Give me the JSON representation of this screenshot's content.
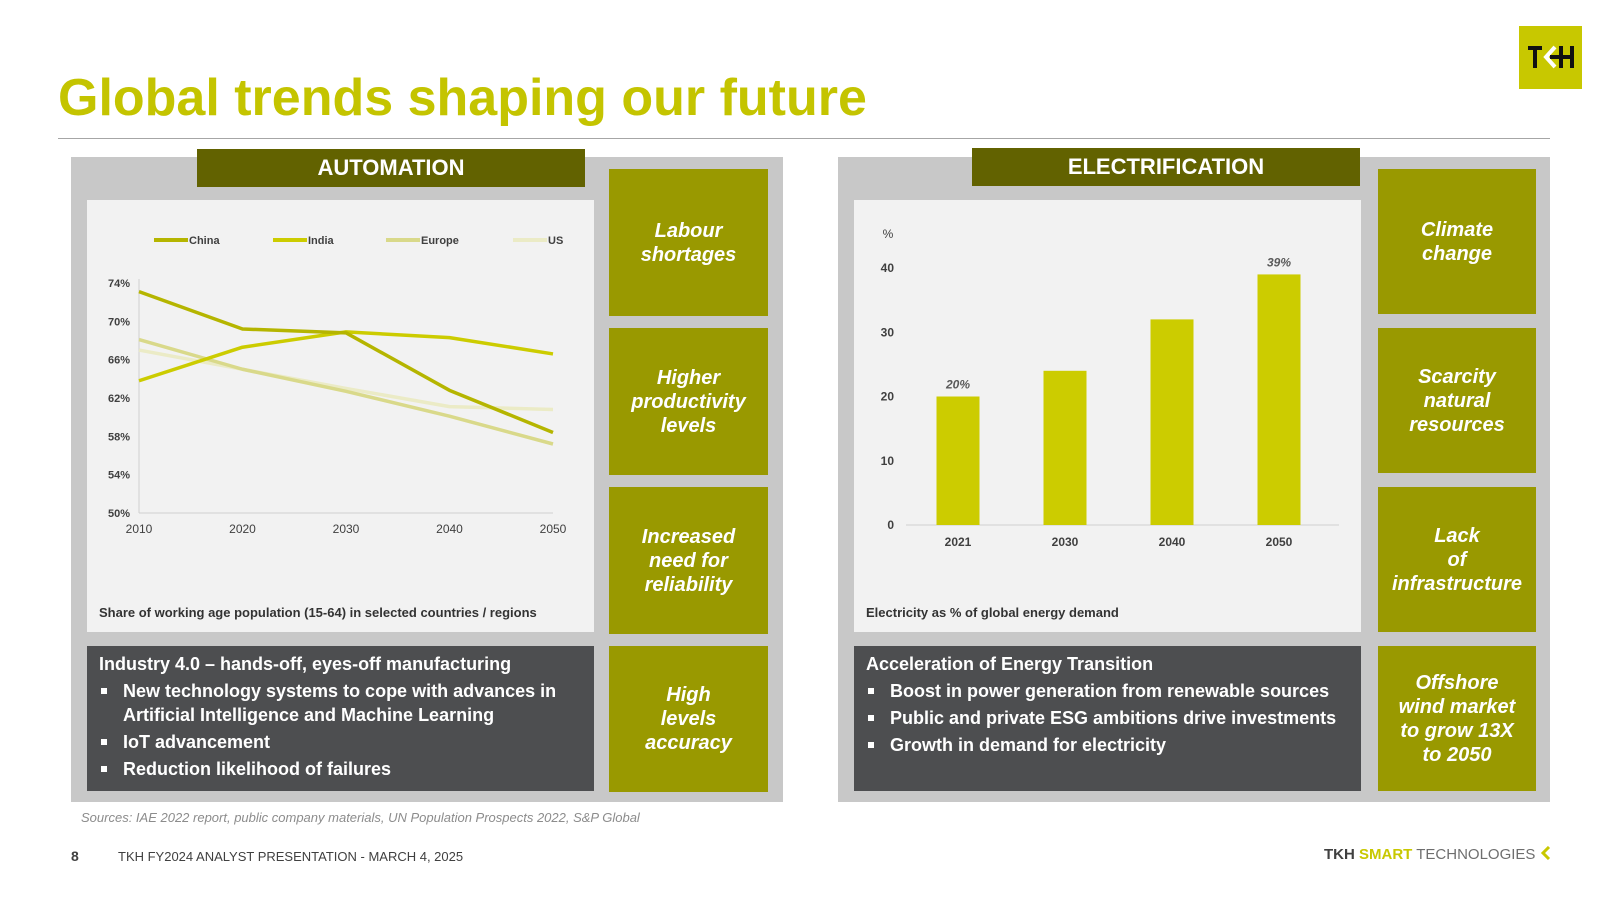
{
  "title": "Global trends shaping our future",
  "logo": {
    "text": "TKH",
    "color": "#c8c800"
  },
  "automation": {
    "header": "AUTOMATION",
    "tiles": [
      [
        "Labour",
        "shortages"
      ],
      [
        "Higher",
        "productivity",
        "levels"
      ],
      [
        "Increased",
        "need for",
        "reliability"
      ],
      [
        "High",
        "levels",
        "accuracy"
      ]
    ],
    "caption": "Share of working age population (15-64) in selected countries / regions",
    "box": {
      "heading": "Industry 4.0 – hands-off, eyes-off manufacturing",
      "bullets": [
        "New technology systems to cope with advances in Artificial Intelligence and Machine Learning",
        "IoT advancement",
        "Reduction likelihood of failures"
      ]
    }
  },
  "electrification": {
    "header": "ELECTRIFICATION",
    "tiles": [
      [
        "Climate",
        "change"
      ],
      [
        "Scarcity",
        "natural",
        "resources"
      ],
      [
        "Lack",
        "of",
        "infrastructure"
      ],
      [
        "Offshore",
        "wind market",
        "to grow 13X",
        "to 2050"
      ]
    ],
    "caption": "Electricity as % of global energy demand",
    "box": {
      "heading": "Acceleration of Energy Transition",
      "bullets": [
        "Boost in power generation from renewable sources",
        "Public and private ESG ambitions drive investments",
        "Growth in demand for electricity"
      ]
    }
  },
  "chart_data": [
    {
      "type": "line",
      "x": [
        2010,
        2020,
        2030,
        2040,
        2050
      ],
      "xticks": [
        "2010",
        "2020",
        "2030",
        "2040",
        "2050"
      ],
      "yticks": [
        "50%",
        "54%",
        "58%",
        "62%",
        "66%",
        "70%",
        "74%"
      ],
      "ylim": [
        50,
        74
      ],
      "legend_position": "top",
      "series": [
        {
          "name": "China",
          "color": "#b5b500",
          "values": [
            73.1,
            69.2,
            68.8,
            62.8,
            58.4
          ]
        },
        {
          "name": "India",
          "color": "#cccc00",
          "values": [
            63.8,
            67.3,
            68.9,
            68.3,
            66.6
          ]
        },
        {
          "name": "Europe",
          "color": "#d9d98a",
          "values": [
            68.1,
            65.0,
            62.7,
            60.1,
            57.2
          ]
        },
        {
          "name": "US",
          "color": "#ebebc6",
          "values": [
            67.0,
            65.0,
            63.0,
            61.1,
            60.8
          ]
        }
      ]
    },
    {
      "type": "bar",
      "ylabel": "%",
      "categories": [
        "2021",
        "2030",
        "2040",
        "2050"
      ],
      "values": [
        20,
        24,
        32,
        39
      ],
      "data_labels": [
        "20%",
        "",
        "",
        "39%"
      ],
      "yticks": [
        "0",
        "10",
        "20",
        "30",
        "40"
      ],
      "ylim": [
        0,
        40
      ],
      "color": "#cccc00"
    }
  ],
  "sources": "Sources: IAE 2022 report, public company materials, UN Population Prospects 2022, S&P Global",
  "footer": {
    "page": "8",
    "text": "TKH FY2024 ANALYST PRESENTATION - MARCH 4, 2025",
    "brand_tkh": "TKH",
    "brand_smart": "SMART",
    "brand_rest": "TECHNOLOGIES"
  }
}
